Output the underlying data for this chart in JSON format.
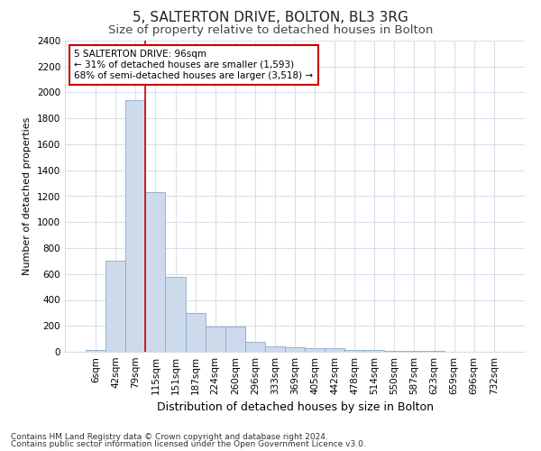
{
  "title1": "5, SALTERTON DRIVE, BOLTON, BL3 3RG",
  "title2": "Size of property relative to detached houses in Bolton",
  "xlabel": "Distribution of detached houses by size in Bolton",
  "ylabel": "Number of detached properties",
  "categories": [
    "6sqm",
    "42sqm",
    "79sqm",
    "115sqm",
    "151sqm",
    "187sqm",
    "224sqm",
    "260sqm",
    "296sqm",
    "333sqm",
    "369sqm",
    "405sqm",
    "442sqm",
    "478sqm",
    "514sqm",
    "550sqm",
    "587sqm",
    "623sqm",
    "659sqm",
    "696sqm",
    "732sqm"
  ],
  "values": [
    15,
    700,
    1940,
    1230,
    575,
    300,
    195,
    195,
    80,
    45,
    35,
    30,
    25,
    15,
    12,
    8,
    5,
    4,
    3,
    2,
    1
  ],
  "bar_color": "#cddaeb",
  "bar_edge_color": "#8aaac8",
  "vline_color": "#cc0000",
  "vline_index": 2.5,
  "annotation_line1": "5 SALTERTON DRIVE: 96sqm",
  "annotation_line2": "← 31% of detached houses are smaller (1,593)",
  "annotation_line3": "68% of semi-detached houses are larger (3,518) →",
  "annotation_box_color": "#ffffff",
  "annotation_box_edge": "#cc0000",
  "ylim": [
    0,
    2400
  ],
  "yticks": [
    0,
    200,
    400,
    600,
    800,
    1000,
    1200,
    1400,
    1600,
    1800,
    2000,
    2200,
    2400
  ],
  "footnote1": "Contains HM Land Registry data © Crown copyright and database right 2024.",
  "footnote2": "Contains public sector information licensed under the Open Government Licence v3.0.",
  "bg_color": "#ffffff",
  "grid_color": "#d8e0ea",
  "title1_fontsize": 11,
  "title2_fontsize": 9.5,
  "xlabel_fontsize": 9,
  "ylabel_fontsize": 8,
  "tick_fontsize": 7.5,
  "annot_fontsize": 7.5,
  "footnote_fontsize": 6.5
}
